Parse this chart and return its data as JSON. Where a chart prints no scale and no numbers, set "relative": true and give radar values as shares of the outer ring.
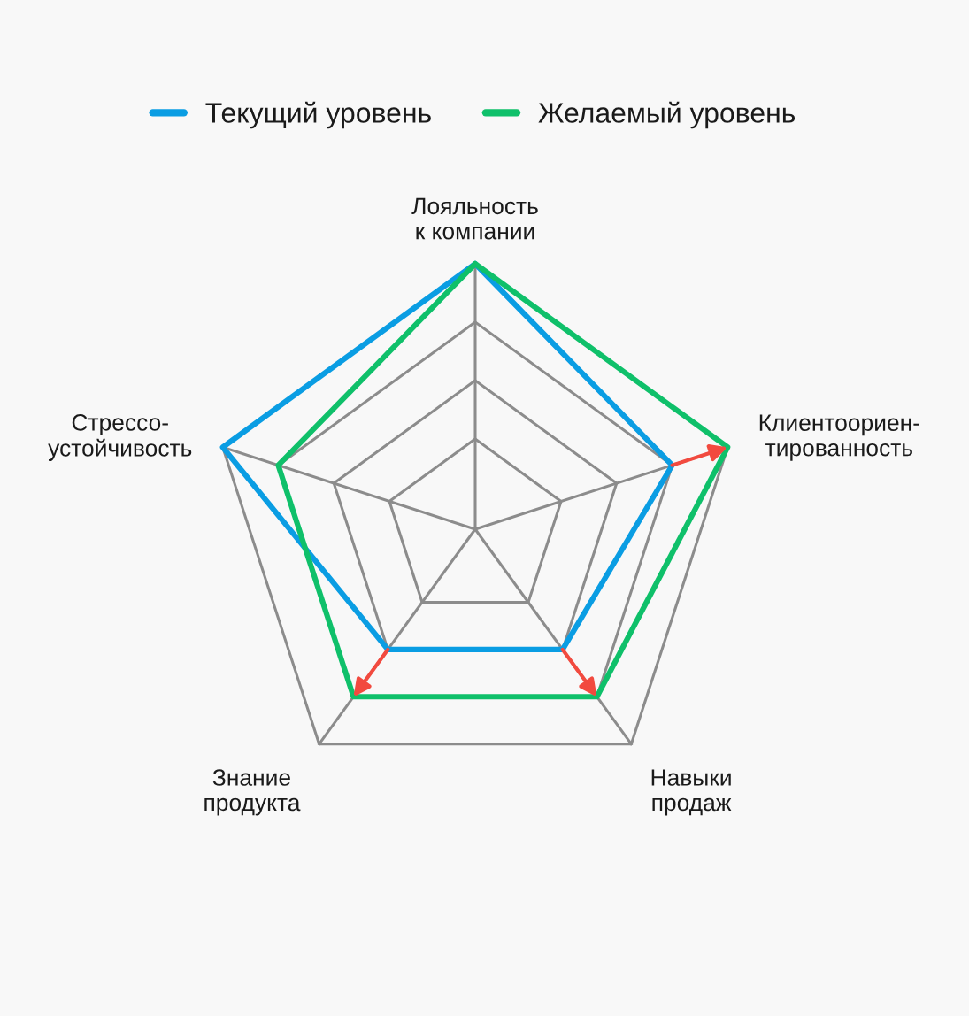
{
  "chart_data": {
    "type": "radar",
    "relative": true,
    "categories": [
      "Лояльность\nк компании",
      "Клиентоориен-\nтированность",
      "Навыки\nпродаж",
      "Знание\nпродукта",
      "Стрессо-\nустойчивость"
    ],
    "series": [
      {
        "name": "Текущий уровень",
        "color": "#0a9de3",
        "values": [
          1,
          0.78,
          0.56,
          0.56,
          1
        ]
      },
      {
        "name": "Желаемый уровень",
        "color": "#0fc06a",
        "values": [
          1,
          1,
          0.78,
          0.78,
          0.78
        ]
      }
    ],
    "grid": true,
    "legend": "top",
    "line_style": "solid"
  }
}
